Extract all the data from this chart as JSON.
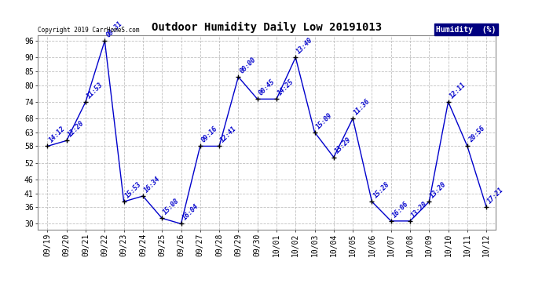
{
  "title": "Outdoor Humidity Daily Low 20191013",
  "copyright": "Copyright 2019 CarrHomeS.com",
  "legend_label": "Humidity  (%)",
  "dates": [
    "09/19",
    "09/20",
    "09/21",
    "09/22",
    "09/23",
    "09/24",
    "09/25",
    "09/26",
    "09/27",
    "09/28",
    "09/29",
    "09/30",
    "10/01",
    "10/02",
    "10/03",
    "10/04",
    "10/05",
    "10/06",
    "10/07",
    "10/08",
    "10/09",
    "10/10",
    "10/11",
    "10/12"
  ],
  "values": [
    58,
    60,
    74,
    96,
    38,
    40,
    32,
    30,
    58,
    58,
    83,
    75,
    75,
    90,
    63,
    54,
    68,
    38,
    31,
    31,
    38,
    74,
    58,
    36
  ],
  "labels": [
    "14:12",
    "12:20",
    "11:53",
    "00:31",
    "15:53",
    "16:34",
    "15:08",
    "16:04",
    "09:16",
    "12:41",
    "00:00",
    "00:45",
    "14:25",
    "13:40",
    "15:09",
    "13:29",
    "11:36",
    "15:28",
    "16:06",
    "13:20",
    "13:20",
    "12:11",
    "20:56",
    "17:21"
  ],
  "line_color": "#0000cc",
  "marker_color": "#000000",
  "bg_color": "#ffffff",
  "plot_bg_color": "#ffffff",
  "grid_color": "#c0c0c0",
  "title_color": "#000000",
  "label_color": "#0000cc",
  "copyright_color": "#000000",
  "legend_bg": "#000080",
  "legend_fg": "#ffffff",
  "ylim": [
    28,
    98
  ],
  "yticks": [
    30,
    36,
    41,
    46,
    52,
    58,
    63,
    68,
    74,
    80,
    85,
    90,
    96
  ],
  "title_fontsize": 10,
  "label_fontsize": 6,
  "tick_fontsize": 7,
  "copyright_fontsize": 5.5,
  "legend_fontsize": 7
}
